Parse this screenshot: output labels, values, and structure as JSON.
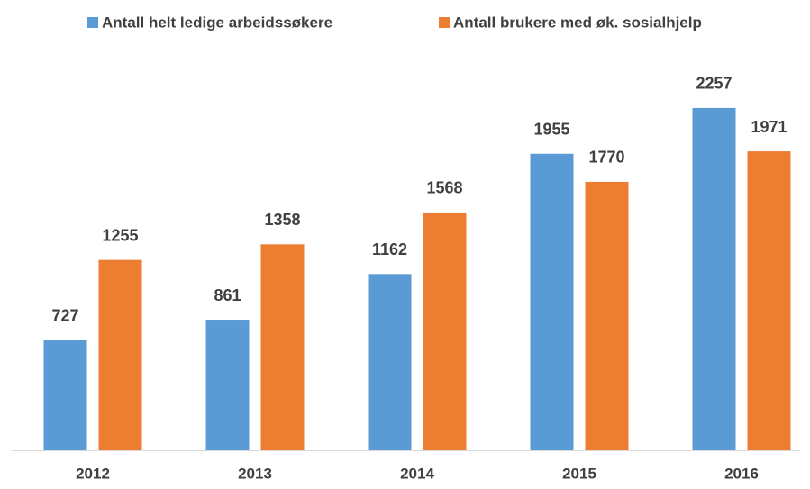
{
  "chart_data": {
    "type": "bar",
    "categories": [
      "2012",
      "2013",
      "2014",
      "2015",
      "2016"
    ],
    "series": [
      {
        "name": "Antall helt ledige arbeidssøkere",
        "color": "#5b9bd5",
        "values": [
          727,
          861,
          1162,
          1955,
          2257
        ]
      },
      {
        "name": "Antall brukere med øk. sosialhjelp",
        "color": "#ed7d31",
        "values": [
          1255,
          1358,
          1568,
          1770,
          1971
        ]
      }
    ],
    "ylim": [
      0,
      2500
    ],
    "legend": "top"
  }
}
